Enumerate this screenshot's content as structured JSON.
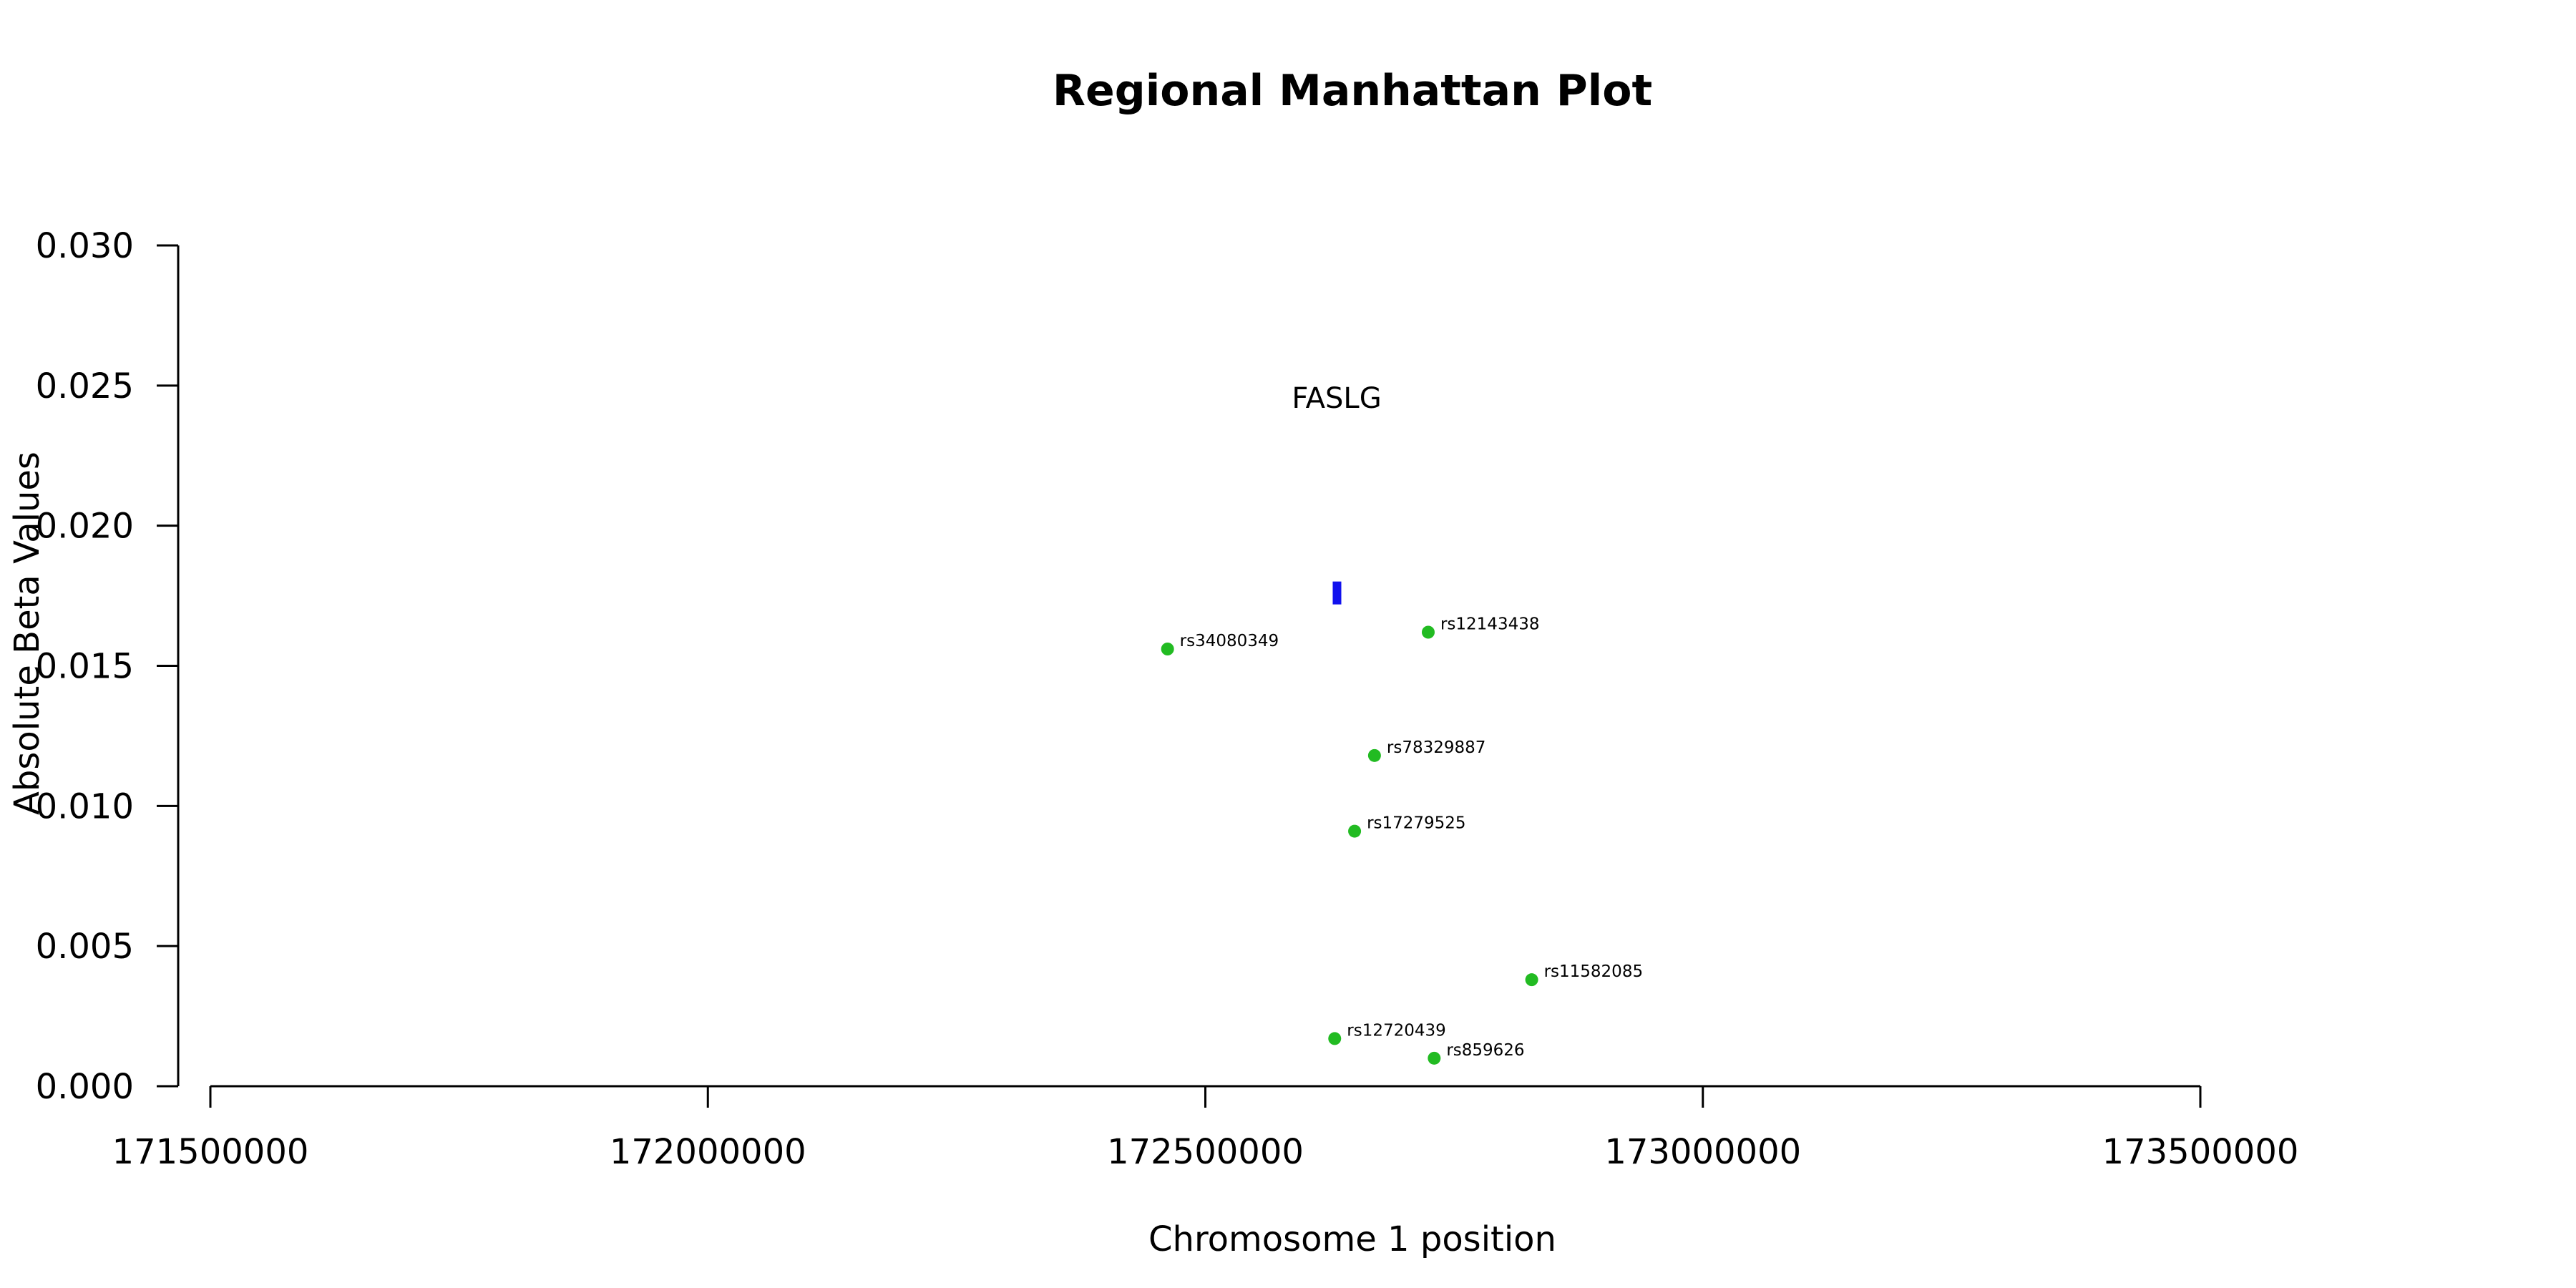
{
  "chart_data": {
    "type": "scatter",
    "title": "Regional Manhattan Plot",
    "xlabel": "Chromosome 1 position",
    "ylabel": "Absolute Beta Values",
    "xlim": [
      171500000,
      173500000
    ],
    "ylim": [
      0,
      0.03
    ],
    "x_ticks": [
      171500000,
      172000000,
      172500000,
      173000000,
      173500000
    ],
    "x_tick_labels": [
      "171500000",
      "172000000",
      "172500000",
      "173000000",
      "173500000"
    ],
    "y_ticks": [
      0,
      0.005,
      0.01,
      0.015,
      0.02,
      0.025,
      0.03
    ],
    "y_tick_labels": [
      "0.000",
      "0.005",
      "0.010",
      "0.015",
      "0.020",
      "0.025",
      "0.030"
    ],
    "grid": false,
    "point_color": "#22bb22",
    "gene_color": "#1111ee",
    "points": [
      {
        "label": "rs34080349",
        "x": 172462000,
        "y": 0.0156
      },
      {
        "label": "rs12143438",
        "x": 172724000,
        "y": 0.0162
      },
      {
        "label": "rs78329887",
        "x": 172670000,
        "y": 0.0118
      },
      {
        "label": "rs17279525",
        "x": 172650000,
        "y": 0.0091
      },
      {
        "label": "rs11582085",
        "x": 172828000,
        "y": 0.0038
      },
      {
        "label": "rs12720439",
        "x": 172630000,
        "y": 0.0017
      },
      {
        "label": "rs859626",
        "x": 172730000,
        "y": 0.001
      }
    ],
    "genes": [
      {
        "name": "FASLG",
        "start": 172628000,
        "end": 172636000,
        "y": 0.0176,
        "label_y": 0.0242
      }
    ]
  }
}
